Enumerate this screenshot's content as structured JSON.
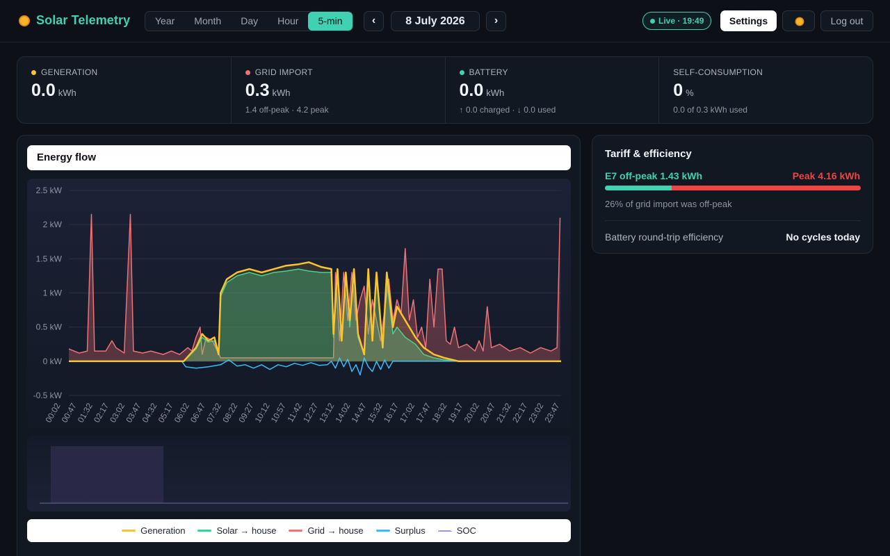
{
  "header": {
    "title": "Solar Telemetry",
    "ranges": [
      "Year",
      "Month",
      "Day",
      "Hour",
      "5-min"
    ],
    "active_range": "5-min",
    "prev_label": "‹",
    "next_label": "›",
    "date": "8 July 2026",
    "live": "Live · 19:49",
    "settings_label": "Settings",
    "logout_label": "Log out"
  },
  "stats": [
    {
      "label": "GENERATION",
      "value": "0.0",
      "unit": "kWh",
      "sub": "",
      "color": "#f6c531"
    },
    {
      "label": "GRID IMPORT",
      "value": "0.3",
      "unit": "kWh",
      "sub": "1.4 off-peak · 4.2 peak",
      "color": "#f07178"
    },
    {
      "label": "BATTERY",
      "value": "0.0",
      "unit": "kWh",
      "sub": "↑ 0.0 charged · ↓ 0.0 used",
      "color": "#3fd1b1"
    },
    {
      "label": "SELF-CONSUMPTION",
      "value": "0",
      "unit": "%",
      "sub": "0.0 of 0.3 kWh used",
      "color": ""
    }
  ],
  "energy_flow": {
    "title": "Energy flow",
    "legend": [
      {
        "label": "Generation",
        "color": "#f6c531",
        "style": "solid"
      },
      {
        "label": "Solar → house",
        "color": "#34d399",
        "style": "solid"
      },
      {
        "label": "Grid → house",
        "color": "#f07178",
        "style": "solid"
      },
      {
        "label": "Surplus",
        "color": "#38bdf8",
        "style": "solid"
      },
      {
        "label": "SOC",
        "color": "#a78bfa",
        "style": "dashed"
      }
    ]
  },
  "chart_data": {
    "type": "line",
    "y_unit": "kW",
    "ylim": [
      -0.5,
      2.5
    ],
    "y_ticks": [
      "2.5 kW",
      "2 kW",
      "1.5 kW",
      "1 kW",
      "0.5 kW",
      "0 kW",
      "-0.5 kW"
    ],
    "x_ticks": [
      "00:02",
      "00:47",
      "01:32",
      "02:17",
      "03:02",
      "03:47",
      "04:32",
      "05:17",
      "06:02",
      "06:47",
      "07:32",
      "08:22",
      "09:27",
      "10:12",
      "10:57",
      "11:42",
      "12:27",
      "13:12",
      "14:02",
      "14:47",
      "15:32",
      "16:17",
      "17:02",
      "17:47",
      "18:32",
      "19:17",
      "20:02",
      "20:47",
      "21:32",
      "22:17",
      "23:02",
      "23:47"
    ],
    "series": [
      {
        "name": "Generation",
        "color": "#f6c531",
        "points": [
          [
            0,
            0
          ],
          [
            5.6,
            0
          ],
          [
            6.2,
            0.2
          ],
          [
            6.5,
            0.4
          ],
          [
            6.8,
            0.3
          ],
          [
            7.1,
            0.35
          ],
          [
            7.3,
            0.1
          ],
          [
            7.4,
            1.0
          ],
          [
            7.7,
            1.2
          ],
          [
            8.2,
            1.3
          ],
          [
            8.8,
            1.35
          ],
          [
            9.4,
            1.3
          ],
          [
            10.0,
            1.35
          ],
          [
            10.6,
            1.4
          ],
          [
            11.2,
            1.42
          ],
          [
            11.7,
            1.45
          ],
          [
            12.3,
            1.38
          ],
          [
            12.8,
            1.35
          ],
          [
            12.9,
            0.4
          ],
          [
            13.1,
            1.35
          ],
          [
            13.3,
            0.3
          ],
          [
            13.5,
            1.3
          ],
          [
            13.7,
            0.6
          ],
          [
            13.9,
            1.35
          ],
          [
            14.1,
            0.4
          ],
          [
            14.4,
            0.1
          ],
          [
            14.6,
            1.35
          ],
          [
            14.8,
            0.3
          ],
          [
            15.0,
            1.3
          ],
          [
            15.3,
            0.2
          ],
          [
            15.5,
            1.3
          ],
          [
            15.8,
            0.5
          ],
          [
            16.0,
            0.8
          ],
          [
            16.4,
            0.6
          ],
          [
            16.9,
            0.35
          ],
          [
            17.3,
            0.2
          ],
          [
            17.8,
            0.1
          ],
          [
            18.3,
            0.05
          ],
          [
            19.0,
            0.0
          ],
          [
            24,
            0
          ]
        ]
      },
      {
        "name": "Solar → house",
        "color": "#34d399",
        "points": [
          [
            0,
            0
          ],
          [
            5.6,
            0
          ],
          [
            6.2,
            0.18
          ],
          [
            6.5,
            0.35
          ],
          [
            6.8,
            0.28
          ],
          [
            7.1,
            0.3
          ],
          [
            7.3,
            0.1
          ],
          [
            7.4,
            0.95
          ],
          [
            7.7,
            1.15
          ],
          [
            8.2,
            1.25
          ],
          [
            8.8,
            1.3
          ],
          [
            9.4,
            1.25
          ],
          [
            10.0,
            1.3
          ],
          [
            10.6,
            1.32
          ],
          [
            11.2,
            1.35
          ],
          [
            11.7,
            1.32
          ],
          [
            12.3,
            1.3
          ],
          [
            12.8,
            1.3
          ],
          [
            12.9,
            0.35
          ],
          [
            13.1,
            1.3
          ],
          [
            13.3,
            0.3
          ],
          [
            13.5,
            1.25
          ],
          [
            13.7,
            0.5
          ],
          [
            13.9,
            1.3
          ],
          [
            14.1,
            0.35
          ],
          [
            14.4,
            0.1
          ],
          [
            14.6,
            1.3
          ],
          [
            14.8,
            0.3
          ],
          [
            15.0,
            1.25
          ],
          [
            15.3,
            0.2
          ],
          [
            15.5,
            1.2
          ],
          [
            15.8,
            0.4
          ],
          [
            16.0,
            0.5
          ],
          [
            16.4,
            0.35
          ],
          [
            16.9,
            0.25
          ],
          [
            17.3,
            0.1
          ],
          [
            17.8,
            0.05
          ],
          [
            18.3,
            0.02
          ],
          [
            19.0,
            0
          ],
          [
            24,
            0
          ]
        ]
      },
      {
        "name": "Grid → house",
        "color": "#f07178",
        "points": [
          [
            0,
            0.18
          ],
          [
            0.5,
            0.12
          ],
          [
            0.9,
            0.15
          ],
          [
            1.1,
            2.15
          ],
          [
            1.25,
            0.15
          ],
          [
            1.8,
            0.15
          ],
          [
            2.1,
            0.3
          ],
          [
            2.3,
            0.2
          ],
          [
            2.7,
            0.12
          ],
          [
            3.0,
            2.15
          ],
          [
            3.15,
            0.15
          ],
          [
            3.6,
            0.12
          ],
          [
            4.0,
            0.15
          ],
          [
            4.6,
            0.1
          ],
          [
            5.0,
            0.15
          ],
          [
            5.4,
            0.1
          ],
          [
            5.8,
            0.2
          ],
          [
            6.0,
            0.15
          ],
          [
            6.2,
            0.35
          ],
          [
            6.4,
            0.5
          ],
          [
            6.5,
            0.1
          ],
          [
            6.7,
            0.35
          ],
          [
            7.0,
            0.3
          ],
          [
            7.4,
            0.05
          ],
          [
            12.9,
            0.05
          ],
          [
            13.0,
            1.3
          ],
          [
            13.2,
            0.3
          ],
          [
            13.4,
            1.3
          ],
          [
            13.6,
            0.6
          ],
          [
            13.8,
            1.3
          ],
          [
            14.0,
            0.6
          ],
          [
            14.2,
            0.9
          ],
          [
            14.4,
            1.1
          ],
          [
            14.6,
            0.4
          ],
          [
            14.8,
            0.9
          ],
          [
            15.2,
            0.3
          ],
          [
            15.6,
            1.2
          ],
          [
            15.8,
            0.6
          ],
          [
            16.0,
            0.9
          ],
          [
            16.2,
            0.7
          ],
          [
            16.4,
            1.65
          ],
          [
            16.6,
            0.6
          ],
          [
            16.8,
            0.9
          ],
          [
            17.0,
            0.35
          ],
          [
            17.2,
            0.5
          ],
          [
            17.4,
            0.2
          ],
          [
            17.6,
            1.2
          ],
          [
            17.8,
            0.5
          ],
          [
            18.0,
            1.35
          ],
          [
            18.2,
            1.35
          ],
          [
            18.4,
            0.3
          ],
          [
            18.6,
            0.25
          ],
          [
            18.8,
            0.5
          ],
          [
            19.0,
            0.2
          ],
          [
            19.4,
            0.25
          ],
          [
            19.8,
            0.15
          ],
          [
            20.0,
            0.3
          ],
          [
            20.2,
            0.15
          ],
          [
            20.4,
            0.8
          ],
          [
            20.6,
            0.2
          ],
          [
            21.0,
            0.25
          ],
          [
            21.5,
            0.15
          ],
          [
            22.0,
            0.2
          ],
          [
            22.5,
            0.12
          ],
          [
            23.0,
            0.2
          ],
          [
            23.5,
            0.15
          ],
          [
            23.8,
            0.2
          ],
          [
            23.95,
            2.1
          ]
        ]
      },
      {
        "name": "Surplus",
        "color": "#38bdf8",
        "points": [
          [
            0,
            0
          ],
          [
            5.5,
            0
          ],
          [
            5.7,
            -0.08
          ],
          [
            6.2,
            -0.1
          ],
          [
            6.8,
            -0.08
          ],
          [
            7.4,
            -0.05
          ],
          [
            7.8,
            0.02
          ],
          [
            8.2,
            -0.07
          ],
          [
            8.6,
            -0.05
          ],
          [
            9.0,
            -0.1
          ],
          [
            9.4,
            -0.05
          ],
          [
            9.8,
            -0.12
          ],
          [
            10.2,
            -0.05
          ],
          [
            10.6,
            -0.08
          ],
          [
            11.0,
            -0.03
          ],
          [
            11.4,
            -0.06
          ],
          [
            11.8,
            -0.02
          ],
          [
            12.2,
            -0.06
          ],
          [
            12.6,
            -0.05
          ],
          [
            12.8,
            0.0
          ],
          [
            13.0,
            -0.1
          ],
          [
            13.2,
            0.05
          ],
          [
            13.4,
            -0.08
          ],
          [
            13.6,
            0.03
          ],
          [
            13.8,
            -0.15
          ],
          [
            14.0,
            -0.05
          ],
          [
            14.2,
            -0.2
          ],
          [
            14.4,
            0.05
          ],
          [
            14.6,
            -0.08
          ],
          [
            14.8,
            -0.15
          ],
          [
            15.0,
            0.0
          ],
          [
            15.2,
            -0.12
          ],
          [
            15.4,
            0.02
          ],
          [
            15.6,
            -0.1
          ],
          [
            15.8,
            0.0
          ],
          [
            24,
            0
          ]
        ]
      }
    ]
  }
}
